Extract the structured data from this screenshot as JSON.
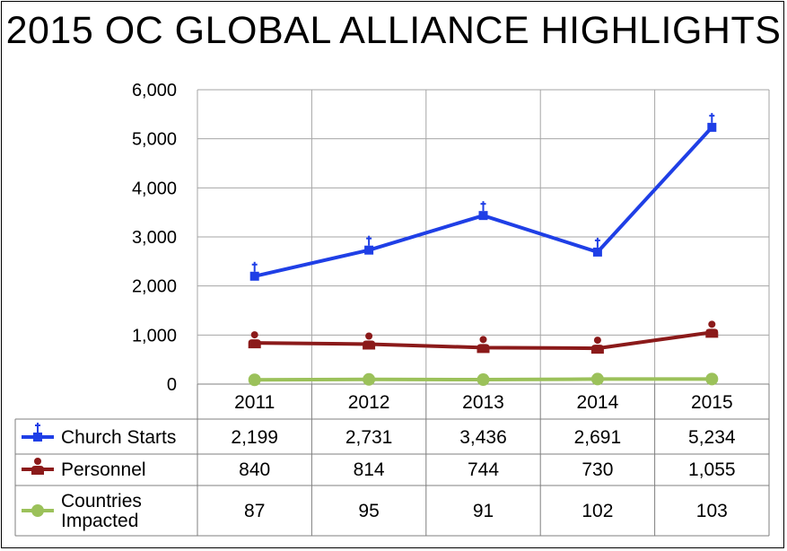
{
  "chart_data": {
    "type": "line",
    "title": "2015 OC GLOBAL ALLIANCE HIGHLIGHTS",
    "categories": [
      "2011",
      "2012",
      "2013",
      "2014",
      "2015"
    ],
    "ylim": [
      0,
      6000
    ],
    "yticks": [
      "0",
      "1,000",
      "2,000",
      "3,000",
      "4,000",
      "5,000",
      "6,000"
    ],
    "grid": true,
    "legend": "data-table",
    "series": [
      {
        "name": "Church Starts",
        "values": [
          2199,
          2731,
          3436,
          2691,
          5234
        ],
        "labels": [
          "2,199",
          "2,731",
          "3,436",
          "2,691",
          "5,234"
        ],
        "color": "#1F3FE6",
        "marker": "square-cross-icon"
      },
      {
        "name": "Personnel",
        "values": [
          840,
          814,
          744,
          730,
          1055
        ],
        "labels": [
          "840",
          "814",
          "744",
          "730",
          "1,055"
        ],
        "color": "#8B1A1A",
        "marker": "person-icon"
      },
      {
        "name": "Countries Impacted",
        "name_lines": [
          "Countries",
          "Impacted"
        ],
        "values": [
          87,
          95,
          91,
          102,
          103
        ],
        "labels": [
          "87",
          "95",
          "91",
          "102",
          "103"
        ],
        "color": "#9BC15A",
        "marker": "circle-icon"
      }
    ]
  }
}
